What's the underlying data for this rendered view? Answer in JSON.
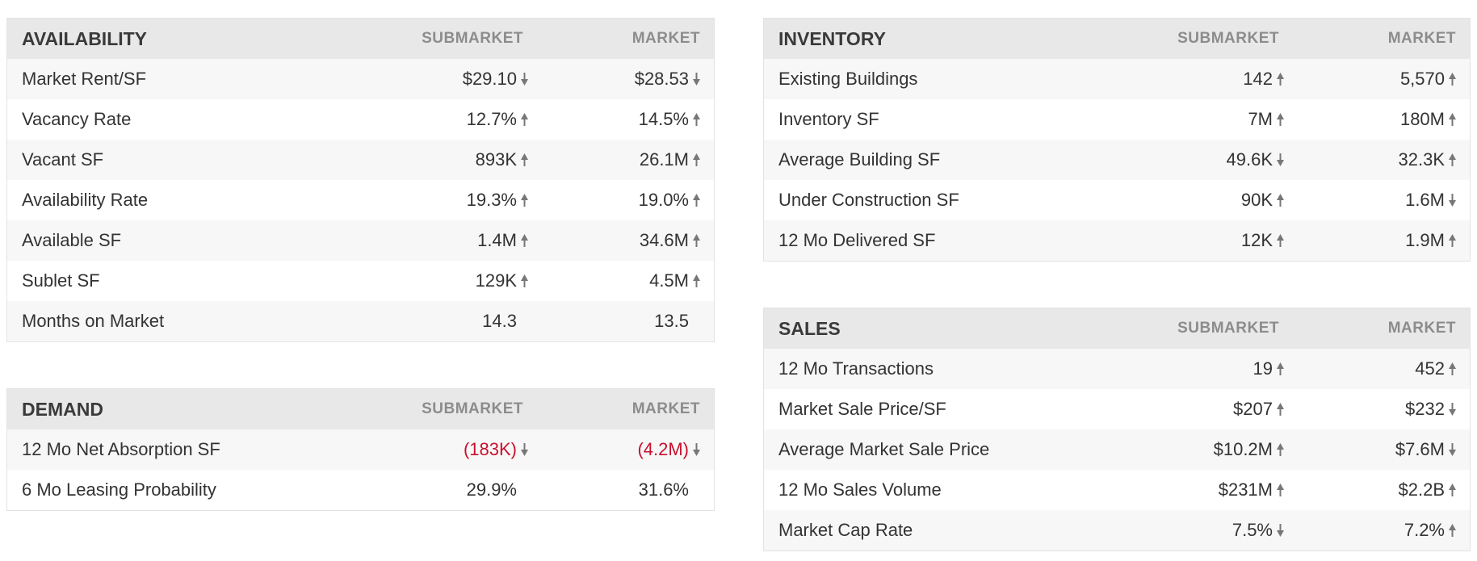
{
  "colors": {
    "header_bg": "#e8e8e8",
    "row_odd_bg": "#f7f7f7",
    "row_even_bg": "#ffffff",
    "negative_text": "#c8102e",
    "arrow": "#777777"
  },
  "availability": {
    "title": "AVAILABILITY",
    "col_submarket": "SUBMARKET",
    "col_market": "MARKET",
    "rows": [
      {
        "label": "Market Rent/SF",
        "submarket": "$29.10",
        "submarket_trend": "down",
        "market": "$28.53",
        "market_trend": "down"
      },
      {
        "label": "Vacancy Rate",
        "submarket": "12.7%",
        "submarket_trend": "up",
        "market": "14.5%",
        "market_trend": "up"
      },
      {
        "label": "Vacant SF",
        "submarket": "893K",
        "submarket_trend": "up",
        "market": "26.1M",
        "market_trend": "up"
      },
      {
        "label": "Availability Rate",
        "submarket": "19.3%",
        "submarket_trend": "up",
        "market": "19.0%",
        "market_trend": "up"
      },
      {
        "label": "Available SF",
        "submarket": "1.4M",
        "submarket_trend": "up",
        "market": "34.6M",
        "market_trend": "up"
      },
      {
        "label": "Sublet SF",
        "submarket": "129K",
        "submarket_trend": "up",
        "market": "4.5M",
        "market_trend": "up"
      },
      {
        "label": "Months on Market",
        "submarket": "14.3",
        "submarket_trend": "none",
        "market": "13.5",
        "market_trend": "none"
      }
    ]
  },
  "demand": {
    "title": "DEMAND",
    "col_submarket": "SUBMARKET",
    "col_market": "MARKET",
    "rows": [
      {
        "label": "12 Mo Net Absorption SF",
        "submarket": "(183K)",
        "submarket_trend": "down",
        "submarket_negative": true,
        "market": "(4.2M)",
        "market_trend": "down",
        "market_negative": true
      },
      {
        "label": "6 Mo Leasing Probability",
        "submarket": "29.9%",
        "submarket_trend": "none",
        "market": "31.6%",
        "market_trend": "none"
      }
    ]
  },
  "inventory": {
    "title": "INVENTORY",
    "col_submarket": "SUBMARKET",
    "col_market": "MARKET",
    "rows": [
      {
        "label": "Existing Buildings",
        "submarket": "142",
        "submarket_trend": "up",
        "market": "5,570",
        "market_trend": "up"
      },
      {
        "label": "Inventory SF",
        "submarket": "7M",
        "submarket_trend": "up",
        "market": "180M",
        "market_trend": "up"
      },
      {
        "label": "Average Building SF",
        "submarket": "49.6K",
        "submarket_trend": "down",
        "market": "32.3K",
        "market_trend": "up"
      },
      {
        "label": "Under Construction SF",
        "submarket": "90K",
        "submarket_trend": "up",
        "market": "1.6M",
        "market_trend": "down"
      },
      {
        "label": "12 Mo Delivered SF",
        "submarket": "12K",
        "submarket_trend": "up",
        "market": "1.9M",
        "market_trend": "up"
      }
    ]
  },
  "sales": {
    "title": "SALES",
    "col_submarket": "SUBMARKET",
    "col_market": "MARKET",
    "rows": [
      {
        "label": "12 Mo Transactions",
        "submarket": "19",
        "submarket_trend": "up",
        "market": "452",
        "market_trend": "up"
      },
      {
        "label": "Market Sale Price/SF",
        "submarket": "$207",
        "submarket_trend": "up",
        "market": "$232",
        "market_trend": "down"
      },
      {
        "label": "Average Market Sale Price",
        "submarket": "$10.2M",
        "submarket_trend": "up",
        "market": "$7.6M",
        "market_trend": "down"
      },
      {
        "label": "12 Mo Sales Volume",
        "submarket": "$231M",
        "submarket_trend": "up",
        "market": "$2.2B",
        "market_trend": "up"
      },
      {
        "label": "Market Cap Rate",
        "submarket": "7.5%",
        "submarket_trend": "down",
        "market": "7.2%",
        "market_trend": "up"
      }
    ]
  }
}
